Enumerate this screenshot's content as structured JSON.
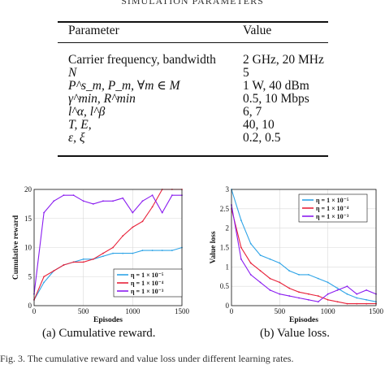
{
  "table": {
    "caption": "SIMULATION PARAMETERS",
    "header": [
      "Parameter",
      "Value"
    ],
    "rows": [
      [
        "Carrier frequency, bandwidth",
        "2 GHz, 20 MHz"
      ],
      [
        "N",
        "5"
      ],
      [
        "P^s_m, P_m, ∀m ∈ M",
        "1 W, 40 dBm"
      ],
      [
        "γ^min, R^min",
        "0.5, 10 Mbps"
      ],
      [
        "l^α, l^β",
        "6, 7"
      ],
      [
        "T, E,",
        "40, 10"
      ],
      [
        "ε, ξ",
        "0.2, 0.5"
      ]
    ]
  },
  "figures": {
    "left_caption": "(a) Cumulative reward.",
    "right_caption": "(b) Value loss.",
    "footer_caption": "Fig. 3.   The cumulative reward and value loss under different learning rates."
  },
  "chart_data": [
    {
      "type": "line",
      "xlabel": "Episodes",
      "ylabel": "Cumulative reward",
      "xlim": [
        0,
        1500
      ],
      "ylim": [
        0,
        20
      ],
      "x_ticks": [
        "0",
        "500",
        "1000",
        "1500"
      ],
      "y_ticks": [
        "0",
        "5",
        "10",
        "15",
        "20"
      ],
      "grid": true,
      "legend": "bottom-right",
      "x": [
        0,
        100,
        200,
        300,
        400,
        500,
        600,
        700,
        800,
        900,
        1000,
        1100,
        1200,
        1300,
        1400,
        1500
      ],
      "series": [
        {
          "name": "η = 1 × 10⁻⁵",
          "color": "#2fa4e7",
          "values": [
            1,
            4,
            6,
            7,
            7.5,
            8,
            8,
            8.5,
            9,
            9,
            9,
            9.5,
            9.5,
            9.5,
            9.5,
            10
          ]
        },
        {
          "name": "η = 1 × 10⁻⁴",
          "color": "#e8223a",
          "values": [
            1,
            5,
            6,
            7,
            7.5,
            7.5,
            8,
            9,
            10,
            12,
            13.5,
            14.5,
            17,
            20,
            20,
            20
          ]
        },
        {
          "name": "η = 1 × 10⁻³",
          "color": "#8a1cf0",
          "values": [
            2,
            16,
            18,
            19,
            19,
            18,
            17.5,
            18,
            18,
            18.5,
            16,
            18,
            19,
            16,
            19,
            19
          ]
        }
      ]
    },
    {
      "type": "line",
      "xlabel": "Episodes",
      "ylabel": "Value loss",
      "xlim": [
        0,
        1500
      ],
      "ylim": [
        0,
        3
      ],
      "x_ticks": [
        "0",
        "500",
        "1000",
        "1500"
      ],
      "y_ticks": [
        "0",
        "0.5",
        "1",
        "1.5",
        "2",
        "2.5",
        "3"
      ],
      "grid": true,
      "legend": "top-right",
      "x": [
        0,
        100,
        200,
        300,
        400,
        500,
        600,
        700,
        800,
        900,
        1000,
        1100,
        1200,
        1300,
        1400,
        1500
      ],
      "series": [
        {
          "name": "η = 1 × 10⁻⁵",
          "color": "#2fa4e7",
          "values": [
            3,
            2.2,
            1.6,
            1.3,
            1.2,
            1.1,
            0.9,
            0.8,
            0.8,
            0.7,
            0.6,
            0.45,
            0.3,
            0.2,
            0.15,
            0.1
          ]
        },
        {
          "name": "η = 1 × 10⁻⁴",
          "color": "#e8223a",
          "values": [
            2.5,
            1.5,
            1.1,
            0.9,
            0.7,
            0.6,
            0.45,
            0.35,
            0.3,
            0.25,
            0.15,
            0.1,
            0.05,
            0.05,
            0.05,
            0.05
          ]
        },
        {
          "name": "η = 1 × 10⁻³",
          "color": "#8a1cf0",
          "values": [
            2.6,
            1.2,
            0.8,
            0.6,
            0.4,
            0.3,
            0.25,
            0.2,
            0.15,
            0.1,
            0.3,
            0.4,
            0.5,
            0.3,
            0.4,
            0.3
          ]
        }
      ]
    }
  ]
}
